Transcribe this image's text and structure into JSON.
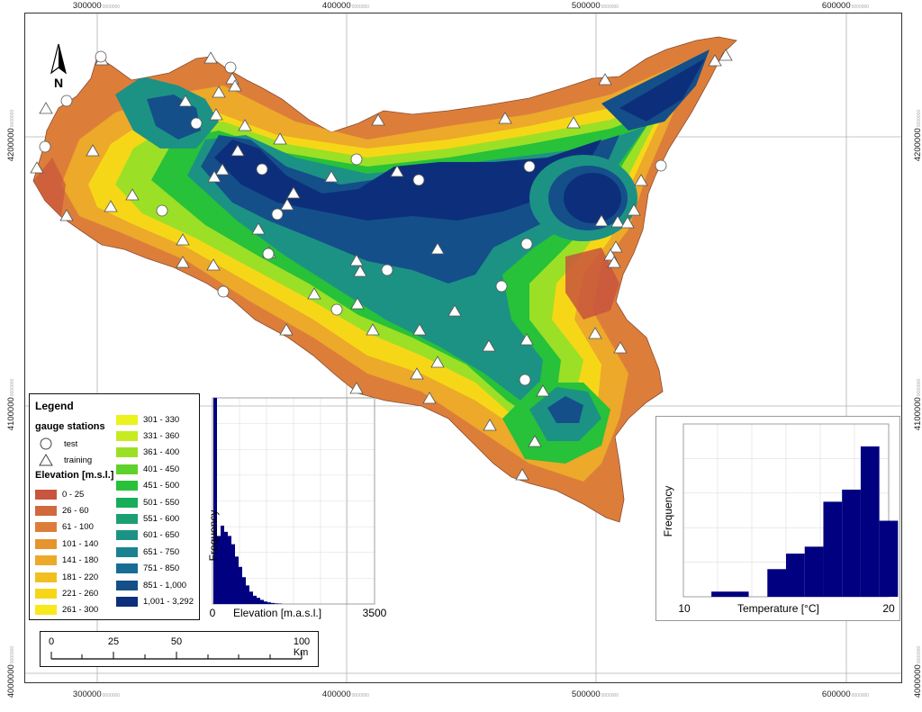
{
  "coords": {
    "x": [
      {
        "main": "300000",
        "small": "0000000"
      },
      {
        "main": "400000",
        "small": "0000000"
      },
      {
        "main": "500000",
        "small": "0000000"
      },
      {
        "main": "600000",
        "small": "0000000"
      }
    ],
    "y": [
      {
        "main": "4200000",
        "small": "0000000"
      },
      {
        "main": "4100000",
        "small": "0000000"
      },
      {
        "main": "4000000",
        "small": "0000000"
      }
    ]
  },
  "north_label": "N",
  "legend": {
    "title": "Legend",
    "gauge_title": "gauge stations",
    "test_label": "test",
    "training_label": "training",
    "elevation_title": "Elevation [m.s.l.]",
    "classes": [
      {
        "label": "0 - 25",
        "color": "#c8553d"
      },
      {
        "label": "26 - 60",
        "color": "#d06a3e"
      },
      {
        "label": "61 - 100",
        "color": "#dc7e3a"
      },
      {
        "label": "101 - 140",
        "color": "#e6942e"
      },
      {
        "label": "141 - 180",
        "color": "#eca92a"
      },
      {
        "label": "181 - 220",
        "color": "#f1c01f"
      },
      {
        "label": "221 - 260",
        "color": "#f6d718"
      },
      {
        "label": "261 - 300",
        "color": "#f8e91c"
      },
      {
        "label": "301 - 330",
        "color": "#ecf21e"
      },
      {
        "label": "331 - 360",
        "color": "#c8ea20"
      },
      {
        "label": "361 - 400",
        "color": "#9be026"
      },
      {
        "label": "401 - 450",
        "color": "#5fd12c"
      },
      {
        "label": "451 - 500",
        "color": "#28c13a"
      },
      {
        "label": "501 - 550",
        "color": "#18ad59"
      },
      {
        "label": "551 - 600",
        "color": "#1c9f74"
      },
      {
        "label": "601 - 650",
        "color": "#1c9285"
      },
      {
        "label": "651 - 750",
        "color": "#1a8291"
      },
      {
        "label": "751 - 850",
        "color": "#176d94"
      },
      {
        "label": "851 - 1,000",
        "color": "#144f8a"
      },
      {
        "label": "1,001 - 3,292",
        "color": "#0d2f7b"
      }
    ]
  },
  "scalebar": {
    "labels": [
      "0",
      "25",
      "50",
      "100 Km"
    ]
  },
  "histograms": {
    "elevation": {
      "xlabel": "Elevation [m.a.s.l.]",
      "ylabel": "Frequency",
      "xmin_label": "0",
      "xmax_label": "3500",
      "bar_color": "#000080",
      "heights": [
        1.0,
        0.33,
        0.38,
        0.35,
        0.33,
        0.29,
        0.23,
        0.18,
        0.13,
        0.09,
        0.06,
        0.04,
        0.03,
        0.02,
        0.012,
        0.008,
        0.005,
        0.003,
        0.002
      ]
    },
    "temperature": {
      "xlabel": "Temperature [°C]",
      "ylabel": "Frequency",
      "xmin_label": "10",
      "xmax_label": "20",
      "bar_color": "#000080",
      "bars": [
        {
          "x0": 11.5,
          "x1": 13.5,
          "h": 0.03
        },
        {
          "x0": 14.5,
          "x1": 15.5,
          "h": 0.16
        },
        {
          "x0": 15.5,
          "x1": 16.5,
          "h": 0.25
        },
        {
          "x0": 16.5,
          "x1": 17.5,
          "h": 0.29
        },
        {
          "x0": 17.5,
          "x1": 18.5,
          "h": 0.55
        },
        {
          "x0": 18.5,
          "x1": 19.5,
          "h": 0.62
        },
        {
          "x0": 19.5,
          "x1": 20.5,
          "h": 0.87
        },
        {
          "x0": 20.5,
          "x1": 21.5,
          "h": 0.44
        }
      ]
    }
  },
  "colors": {
    "sea": "#ffffff",
    "grid": "#b0b0b0",
    "coast": "#7a3b2a"
  }
}
